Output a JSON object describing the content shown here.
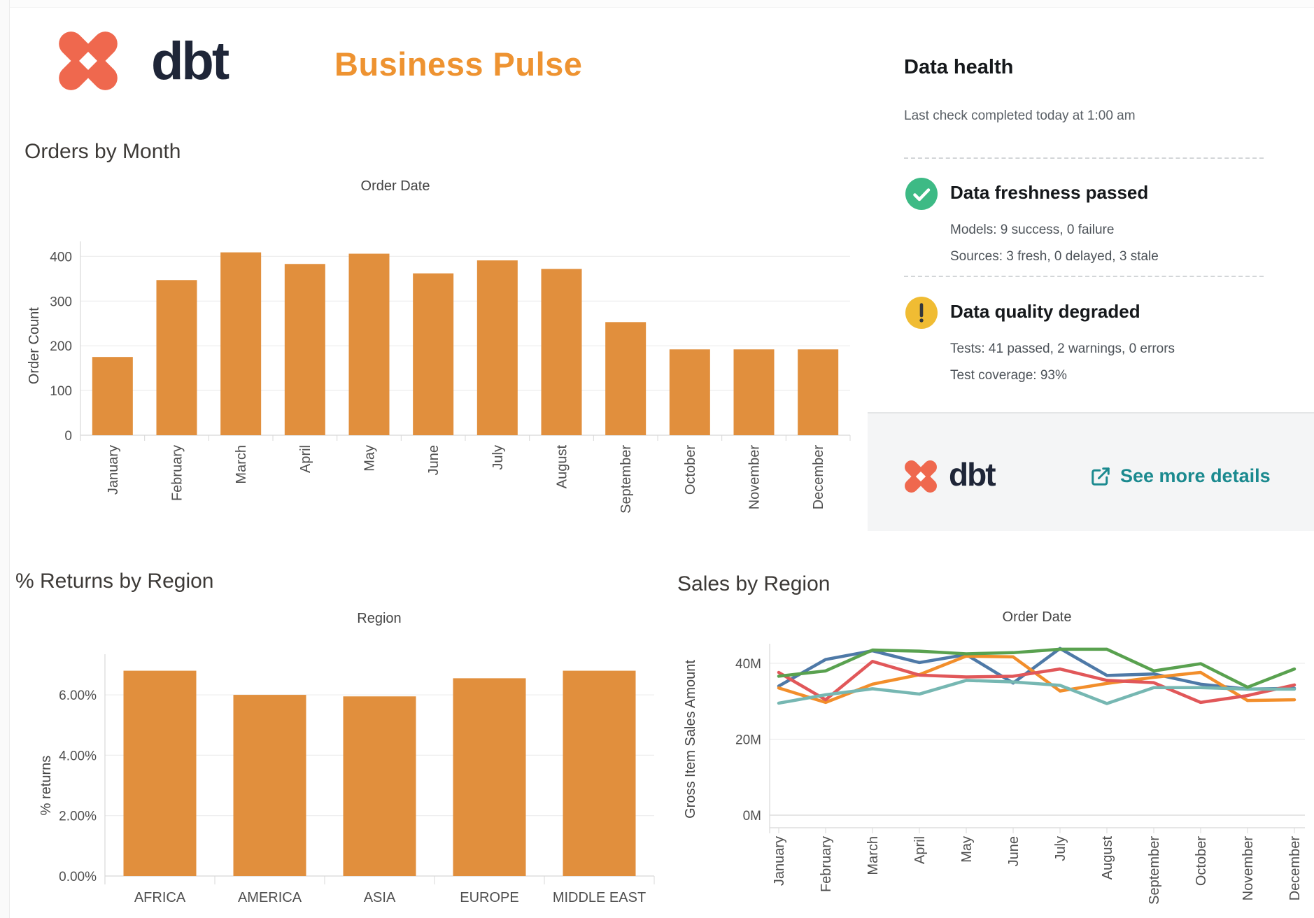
{
  "header": {
    "brand": "dbt",
    "title": "Business Pulse"
  },
  "health": {
    "title": "Data health",
    "subtitle": "Last check completed today at 1:00 am",
    "freshness": {
      "title": "Data freshness passed",
      "line1": "Models: 9 success, 0 failure",
      "line2": "Sources: 3 fresh, 0 delayed, 3 stale"
    },
    "quality": {
      "title": "Data quality degraded",
      "line1": "Tests: 41 passed, 2 warnings, 0 errors",
      "line2": "Test coverage: 93%"
    },
    "footer": {
      "brand": "dbt",
      "link_label": "See more details"
    }
  },
  "colors": {
    "bar_orange": "#e18f3d",
    "brand_coral": "#ef684e",
    "brand_navy": "#1f2638",
    "title_orange": "#ee9331",
    "link_teal": "#1b8a8f",
    "success_green": "#3dba85",
    "warning_yellow": "#f0bc33",
    "grid": "#ededee",
    "axis": "#d8d8d8"
  },
  "chart_data": [
    {
      "id": "orders",
      "type": "bar",
      "title": "Orders by Month",
      "xlabel": "Order Date",
      "ylabel": "Order Count",
      "categories": [
        "January",
        "February",
        "March",
        "April",
        "May",
        "June",
        "July",
        "August",
        "September",
        "October",
        "November",
        "December"
      ],
      "values": [
        175,
        347,
        409,
        383,
        406,
        362,
        391,
        372,
        253,
        192,
        192,
        192
      ],
      "y_ticks": [
        {
          "value": 0,
          "label": "0"
        },
        {
          "value": 100,
          "label": "100"
        },
        {
          "value": 200,
          "label": "200"
        },
        {
          "value": 300,
          "label": "300"
        },
        {
          "value": 400,
          "label": "400"
        }
      ],
      "ylim": [
        0,
        430
      ],
      "grid": true,
      "legend": "none",
      "bar_color": "#e18f3d"
    },
    {
      "id": "returns",
      "type": "bar",
      "title": "% Returns by Region",
      "xlabel": "Region",
      "ylabel": "% returns",
      "categories": [
        "AFRICA",
        "AMERICA",
        "ASIA",
        "EUROPE",
        "MIDDLE EAST"
      ],
      "values": [
        6.8,
        6.0,
        5.95,
        6.55,
        6.8
      ],
      "y_ticks": [
        {
          "value": 0,
          "label": "0.00%"
        },
        {
          "value": 2,
          "label": "2.00%"
        },
        {
          "value": 4,
          "label": "4.00%"
        },
        {
          "value": 6,
          "label": "6.00%"
        }
      ],
      "ylim": [
        0,
        7.35
      ],
      "grid": true,
      "legend": "none",
      "bar_color": "#e18f3d"
    },
    {
      "id": "sales",
      "type": "line",
      "title": "Sales by Region",
      "xlabel": "Order Date",
      "ylabel": "Gross Item Sales Amount",
      "unit": "millions",
      "categories": [
        "January",
        "February",
        "March",
        "April",
        "May",
        "June",
        "July",
        "August",
        "September",
        "October",
        "November",
        "December"
      ],
      "series": [
        {
          "name": "blue",
          "color": "#4e79a7",
          "values": [
            34.0,
            41.0,
            43.3,
            40.2,
            42.3,
            34.8,
            43.9,
            36.8,
            37.2,
            34.5,
            33.2,
            33.4
          ]
        },
        {
          "name": "orange",
          "color": "#f28e2b",
          "values": [
            33.5,
            29.7,
            34.5,
            37.0,
            41.9,
            41.7,
            32.7,
            34.7,
            36.3,
            37.6,
            30.2,
            30.4
          ]
        },
        {
          "name": "red",
          "color": "#e15759",
          "values": [
            37.6,
            30.4,
            40.5,
            36.9,
            36.4,
            36.6,
            38.5,
            35.5,
            34.9,
            29.7,
            31.5,
            34.3
          ]
        },
        {
          "name": "teal",
          "color": "#76b7b2",
          "values": [
            29.5,
            31.7,
            33.3,
            31.9,
            35.5,
            35.1,
            34.2,
            29.4,
            33.6,
            33.6,
            33.2,
            33.2
          ]
        },
        {
          "name": "green",
          "color": "#59a14f",
          "values": [
            36.6,
            38.0,
            43.5,
            43.2,
            42.5,
            42.8,
            43.7,
            43.7,
            38.0,
            39.9,
            33.7,
            38.5
          ]
        }
      ],
      "y_ticks": [
        {
          "value": 0,
          "label": "0M"
        },
        {
          "value": 20,
          "label": "20M"
        },
        {
          "value": 40,
          "label": "40M"
        }
      ],
      "ylim": [
        0,
        47
      ],
      "grid": true,
      "legend": "none"
    }
  ]
}
